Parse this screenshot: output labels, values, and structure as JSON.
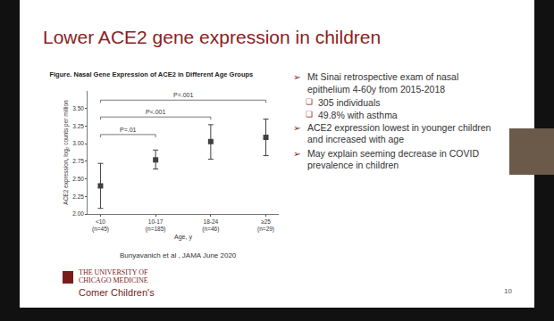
{
  "slide": {
    "title": "Lower ACE2 gene expression in children",
    "bullets": [
      {
        "text": "Mt Sinai retrospective exam of nasal epithelium 4-60y from 2015-2018",
        "sub": [
          "305 individuals",
          "49.8% with asthma"
        ]
      },
      {
        "text": "ACE2 expression lowest in younger children and increased with age",
        "sub": []
      },
      {
        "text": "May explain seeming decrease in COVID prevalence in children",
        "sub": []
      }
    ],
    "citation": "Bunyavanich et al , JAMA June 2020",
    "footer": {
      "institution": [
        "THE UNIVERSITY OF",
        "CHICAGO MEDICINE"
      ],
      "unit": "Comer Children's"
    },
    "page": "10"
  },
  "chart_data": {
    "type": "scatter",
    "title": "Figure. Nasal Gene Expression of ACE2 in Different Age Groups",
    "x_label": "Age, y",
    "y_label": "ACE2 expression, log₂ counts per million",
    "categories": [
      "<10\n(n=45)",
      "10-17\n(n=185)",
      "18-24\n(n=46)",
      "≥25\n(n=29)"
    ],
    "values": [
      2.4,
      2.77,
      3.03,
      3.09
    ],
    "ci_low": [
      2.08,
      2.64,
      2.78,
      2.83
    ],
    "ci_high": [
      2.72,
      2.91,
      3.27,
      3.35
    ],
    "color": "#404040",
    "marker": "square",
    "grid": false,
    "ylim": [
      2.0,
      3.75
    ],
    "yticks": [
      {
        "value": 2.0,
        "label": "2.00"
      },
      {
        "value": 2.25,
        "label": "2.25"
      },
      {
        "value": 2.5,
        "label": "2.50"
      },
      {
        "value": 2.75,
        "label": "2.75"
      },
      {
        "value": 3.0,
        "label": "3.00"
      },
      {
        "value": 3.25,
        "label": "3.25"
      },
      {
        "value": 3.5,
        "label": "3.50"
      }
    ],
    "comparisons": [
      {
        "from": "<10\n(n=45)",
        "to": "10-17\n(n=185)",
        "label": "P=.01",
        "y": 3.13
      },
      {
        "from": "<10\n(n=45)",
        "to": "18-24\n(n=46)",
        "label": "P<.001",
        "y": 3.38
      },
      {
        "from": "<10\n(n=45)",
        "to": "≥25\n(n=29)",
        "label": "P=.001",
        "y": 3.62
      }
    ]
  }
}
